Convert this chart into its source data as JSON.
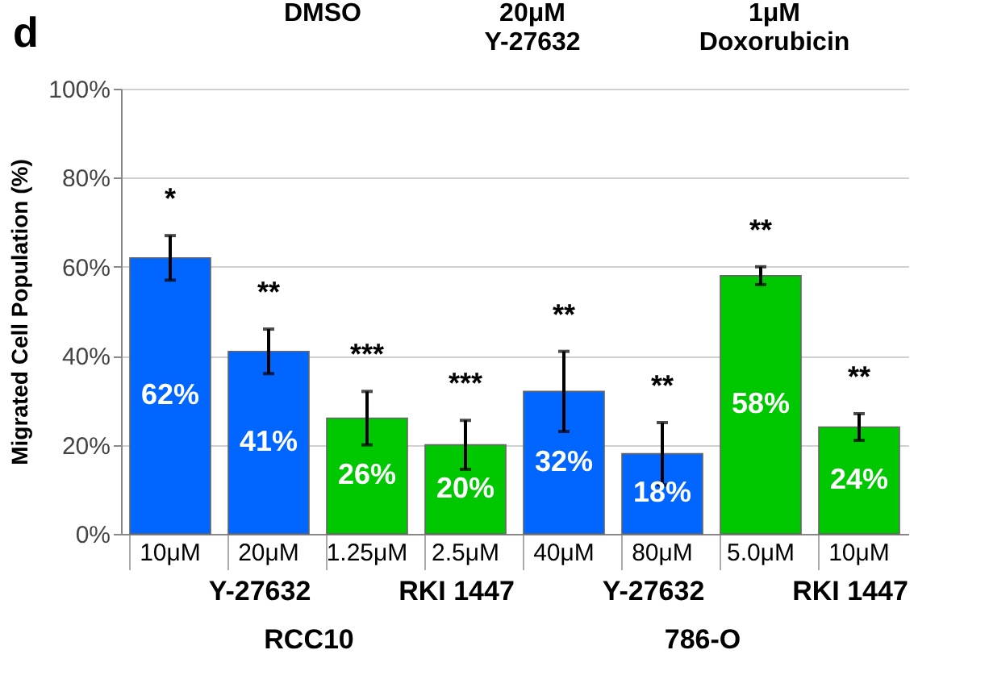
{
  "chart_data": {
    "type": "bar",
    "ylabel": "Migrated Cell Population (%)",
    "categories": [
      "10μM",
      "20μM",
      "1.25μM",
      "2.5μM",
      "40μM",
      "80μM",
      "5.0μM",
      "10μM"
    ],
    "values": [
      62,
      41,
      26,
      20,
      32,
      18,
      58,
      24
    ],
    "colors": [
      "#0066ff",
      "#0066ff",
      "#00c800",
      "#00c800",
      "#0066ff",
      "#0066ff",
      "#00c800",
      "#00c800"
    ],
    "errors": [
      5,
      5,
      6,
      5.5,
      9,
      7,
      2,
      3
    ],
    "value_labels": [
      "62%",
      "41%",
      "26%",
      "20%",
      "32%",
      "18%",
      "58%",
      "24%"
    ],
    "ylim": [
      0,
      100
    ],
    "yticks": [
      {
        "value": 0,
        "label": "0%"
      },
      {
        "value": 20,
        "label": "20%"
      },
      {
        "value": 40,
        "label": "40%"
      },
      {
        "value": 60,
        "label": "60%"
      },
      {
        "value": 80,
        "label": "80%"
      },
      {
        "value": 100,
        "label": "100%"
      }
    ],
    "grid": "y",
    "annotations": [
      "d",
      "DMSO",
      "20μM\nY-27632",
      "1μM\nDoxorubicin",
      "Y-27632",
      "RKI 1447",
      "Y-27632",
      "RKI 1447",
      "RCC10",
      "786-O",
      "*",
      "**",
      "***",
      "***",
      "**",
      "**",
      "**",
      "**"
    ]
  }
}
